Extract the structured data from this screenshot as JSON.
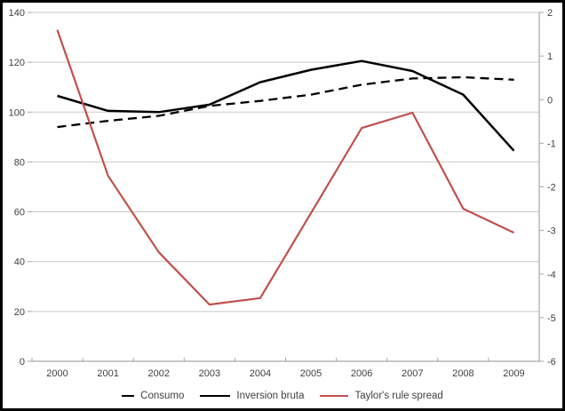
{
  "chart_data": {
    "type": "line",
    "title": "",
    "xlabel": "",
    "ylabel": "",
    "categories": [
      "2000",
      "2001",
      "2002",
      "2003",
      "2004",
      "2005",
      "2006",
      "2007",
      "2008",
      "2009"
    ],
    "series": [
      {
        "name": "Consumo",
        "axis": "left",
        "color": "#000000",
        "style": "dashed",
        "values": [
          94,
          96.5,
          98.5,
          102.5,
          104.5,
          107,
          111,
          113.5,
          114,
          113
        ]
      },
      {
        "name": "Inversion bruta",
        "axis": "left",
        "color": "#000000",
        "style": "solid",
        "values": [
          106.5,
          100.5,
          100,
          103,
          112,
          117,
          120.5,
          116.5,
          107,
          84.5
        ]
      },
      {
        "name": "Taylor's rule spread",
        "axis": "right",
        "color": "#C0504D",
        "style": "solid",
        "values": [
          1.6,
          -1.75,
          -3.5,
          -4.7,
          -4.55,
          -2.6,
          -0.65,
          -0.3,
          -2.5,
          -3.05
        ]
      }
    ],
    "left_axis": {
      "min": 0,
      "max": 140,
      "step": 20,
      "tick_labels": [
        "0",
        "20",
        "40",
        "60",
        "80",
        "100",
        "120",
        "140"
      ]
    },
    "right_axis": {
      "min": -6,
      "max": 2,
      "step": 1,
      "tick_labels": [
        "-6",
        "-5",
        "-4",
        "-3",
        "-2",
        "-1",
        "0",
        "1",
        "2"
      ]
    },
    "grid": true,
    "legend_position": "bottom"
  },
  "legend": {
    "items": [
      {
        "label": "Consumo",
        "sample": "black-dashed-line"
      },
      {
        "label": "Inversion bruta",
        "sample": "black-solid-line"
      },
      {
        "label": "Taylor's rule spread",
        "sample": "red-solid-line"
      }
    ]
  },
  "colors": {
    "series_black": "#000000",
    "series_red": "#C0504D",
    "gridline": "#C9C9C9",
    "axis_line": "#A6A6A6",
    "text": "#3F3F3F",
    "background": "#FFFFFF",
    "frame_border": "#000000"
  }
}
